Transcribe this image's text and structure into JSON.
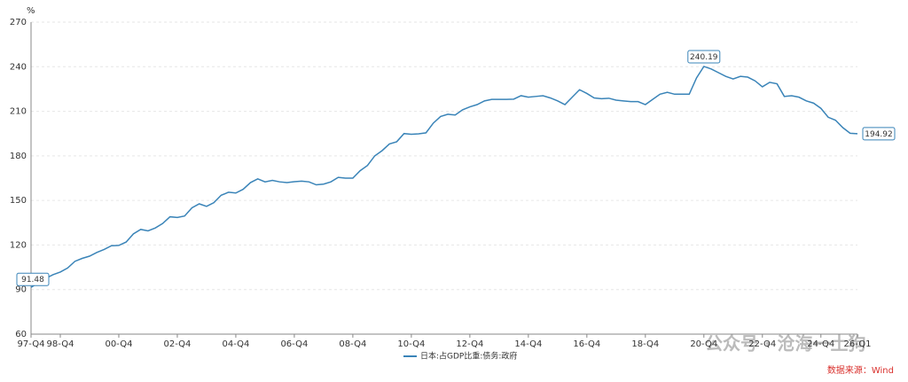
{
  "chart_data": {
    "type": "line",
    "y_unit": "%",
    "categories": [
      "97-Q4",
      null,
      null,
      null,
      "98-Q4",
      null,
      null,
      null,
      null,
      null,
      null,
      null,
      "00-Q4",
      null,
      null,
      null,
      null,
      null,
      null,
      null,
      "02-Q4",
      null,
      null,
      null,
      null,
      null,
      null,
      null,
      "04-Q4",
      null,
      null,
      null,
      null,
      null,
      null,
      null,
      "06-Q4",
      null,
      null,
      null,
      null,
      null,
      null,
      null,
      "08-Q4",
      null,
      null,
      null,
      null,
      null,
      null,
      null,
      "10-Q4",
      null,
      null,
      null,
      null,
      null,
      null,
      null,
      "12-Q4",
      null,
      null,
      null,
      null,
      null,
      null,
      null,
      "14-Q4",
      null,
      null,
      null,
      null,
      null,
      null,
      null,
      "16-Q4",
      null,
      null,
      null,
      null,
      null,
      null,
      null,
      "18-Q4",
      null,
      null,
      null,
      null,
      null,
      null,
      null,
      "20-Q4",
      null,
      null,
      null,
      null,
      null,
      null,
      null,
      "22-Q4",
      null,
      null,
      null,
      null,
      null,
      null,
      null,
      "24-Q4",
      null,
      null,
      null,
      null,
      "26-Q1"
    ],
    "series": [
      {
        "name": "日本:占GDP比重:债务:政府",
        "color": "#3a84b8",
        "values": [
          91.48,
          94.5,
          97.5,
          100,
          101.8,
          104.5,
          109,
          111,
          112.5,
          115,
          117,
          119.5,
          119.7,
          122,
          127.5,
          130.5,
          129.5,
          131.5,
          134.5,
          139,
          138.5,
          139.5,
          145,
          147.7,
          146,
          148.5,
          153.5,
          155.5,
          155,
          157.5,
          162,
          164.5,
          162.5,
          163.5,
          162.5,
          162,
          162.6,
          163,
          162.5,
          160.5,
          161,
          162.5,
          165.5,
          165,
          165,
          170,
          173.5,
          180,
          183.5,
          188,
          189.5,
          195,
          194.5,
          194.8,
          195.5,
          202,
          206.5,
          208,
          207.5,
          211,
          213,
          214.5,
          217,
          218,
          218,
          218,
          218.2,
          220.5,
          219.5,
          220,
          220.5,
          219,
          217,
          214.5,
          219.5,
          224.5,
          222,
          219,
          218.5,
          218.8,
          217.5,
          217,
          216.5,
          216.5,
          214.5,
          218,
          221.5,
          222.8,
          221.5,
          221.5,
          221.5,
          232.5,
          240.19,
          238.5,
          236,
          233.5,
          231.8,
          233.5,
          233,
          230.5,
          226.5,
          229.5,
          228.5,
          220,
          220.5,
          219.5,
          217,
          215.5,
          212,
          206,
          204,
          199,
          195.2,
          194.92
        ]
      }
    ],
    "ylim": [
      60,
      270
    ],
    "yticks": [
      60,
      90,
      120,
      150,
      180,
      210,
      240,
      270
    ],
    "grid": true,
    "source": "数据来源：Wind",
    "watermark": "公众号 · 沧海一土狗"
  }
}
